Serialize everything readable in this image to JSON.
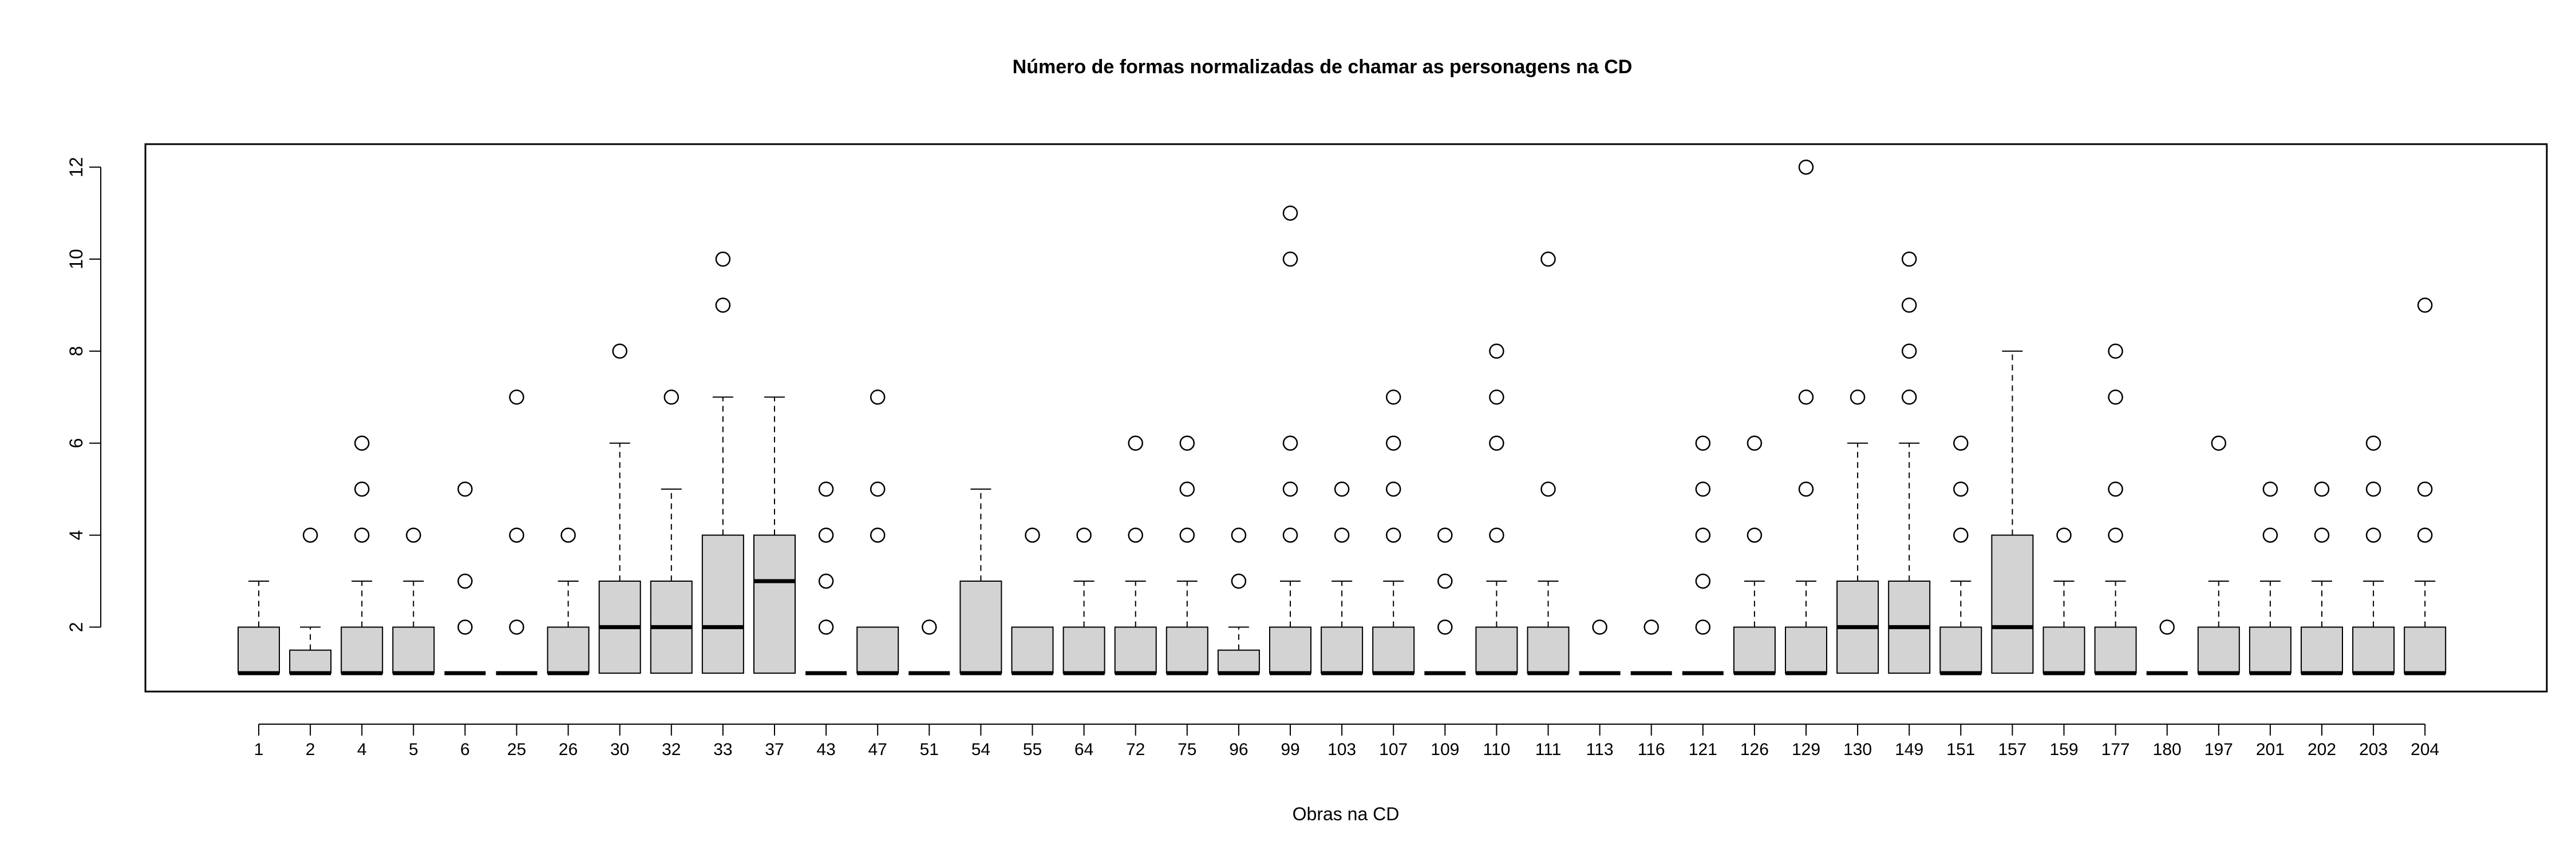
{
  "chart_data": {
    "type": "boxplot",
    "title": "Número de formas normalizadas de chamar as personagens na CD",
    "xlabel": "Obras na CD",
    "ylabel": "",
    "ylim": [
      0.6,
      12.5
    ],
    "yticks": [
      2,
      4,
      6,
      8,
      10,
      12
    ],
    "grid": false,
    "box_fill": "#d3d3d3",
    "categories": [
      "1",
      "2",
      "4",
      "5",
      "6",
      "25",
      "26",
      "30",
      "32",
      "33",
      "37",
      "43",
      "47",
      "51",
      "54",
      "55",
      "64",
      "72",
      "75",
      "96",
      "99",
      "103",
      "107",
      "109",
      "110",
      "111",
      "113",
      "116",
      "121",
      "126",
      "129",
      "130",
      "149",
      "151",
      "157",
      "159",
      "177",
      "180",
      "197",
      "201",
      "202",
      "203",
      "204"
    ],
    "boxes": [
      {
        "min": 1,
        "q1": 1,
        "median": 1,
        "q3": 2,
        "max": 3,
        "outliers": []
      },
      {
        "min": 1,
        "q1": 1,
        "median": 1,
        "q3": 1.5,
        "max": 2,
        "outliers": [
          4
        ]
      },
      {
        "min": 1,
        "q1": 1,
        "median": 1,
        "q3": 2,
        "max": 3,
        "outliers": [
          4,
          5,
          6
        ]
      },
      {
        "min": 1,
        "q1": 1,
        "median": 1,
        "q3": 2,
        "max": 3,
        "outliers": [
          4
        ]
      },
      {
        "min": 1,
        "q1": 1,
        "median": 1,
        "q3": 1,
        "max": 1,
        "outliers": [
          2,
          3,
          5
        ]
      },
      {
        "min": 1,
        "q1": 1,
        "median": 1,
        "q3": 1,
        "max": 1,
        "outliers": [
          2,
          4,
          7
        ]
      },
      {
        "min": 1,
        "q1": 1,
        "median": 1,
        "q3": 2,
        "max": 3,
        "outliers": [
          4
        ]
      },
      {
        "min": 1,
        "q1": 1,
        "median": 2,
        "q3": 3,
        "max": 6,
        "outliers": [
          8
        ]
      },
      {
        "min": 1,
        "q1": 1,
        "median": 2,
        "q3": 3,
        "max": 5,
        "outliers": [
          7
        ]
      },
      {
        "min": 1,
        "q1": 1,
        "median": 2,
        "q3": 4,
        "max": 7,
        "outliers": [
          9,
          10
        ]
      },
      {
        "min": 1,
        "q1": 1,
        "median": 3,
        "q3": 4,
        "max": 7,
        "outliers": []
      },
      {
        "min": 1,
        "q1": 1,
        "median": 1,
        "q3": 1,
        "max": 1,
        "outliers": [
          2,
          3,
          4,
          5
        ]
      },
      {
        "min": 1,
        "q1": 1,
        "median": 1,
        "q3": 2,
        "max": 2,
        "outliers": [
          4,
          5,
          7
        ]
      },
      {
        "min": 1,
        "q1": 1,
        "median": 1,
        "q3": 1,
        "max": 1,
        "outliers": [
          2
        ]
      },
      {
        "min": 1,
        "q1": 1,
        "median": 1,
        "q3": 3,
        "max": 5,
        "outliers": []
      },
      {
        "min": 1,
        "q1": 1,
        "median": 1,
        "q3": 2,
        "max": 2,
        "outliers": [
          4
        ]
      },
      {
        "min": 1,
        "q1": 1,
        "median": 1,
        "q3": 2,
        "max": 3,
        "outliers": [
          4
        ]
      },
      {
        "min": 1,
        "q1": 1,
        "median": 1,
        "q3": 2,
        "max": 3,
        "outliers": [
          4,
          6
        ]
      },
      {
        "min": 1,
        "q1": 1,
        "median": 1,
        "q3": 2,
        "max": 3,
        "outliers": [
          4,
          5,
          6
        ]
      },
      {
        "min": 1,
        "q1": 1,
        "median": 1,
        "q3": 1.5,
        "max": 2,
        "outliers": [
          3,
          4
        ]
      },
      {
        "min": 1,
        "q1": 1,
        "median": 1,
        "q3": 2,
        "max": 3,
        "outliers": [
          4,
          5,
          6,
          10,
          11
        ]
      },
      {
        "min": 1,
        "q1": 1,
        "median": 1,
        "q3": 2,
        "max": 3,
        "outliers": [
          4,
          5
        ]
      },
      {
        "min": 1,
        "q1": 1,
        "median": 1,
        "q3": 2,
        "max": 3,
        "outliers": [
          4,
          5,
          6,
          7
        ]
      },
      {
        "min": 1,
        "q1": 1,
        "median": 1,
        "q3": 1,
        "max": 1,
        "outliers": [
          2,
          3,
          4
        ]
      },
      {
        "min": 1,
        "q1": 1,
        "median": 1,
        "q3": 2,
        "max": 3,
        "outliers": [
          4,
          6,
          7,
          8
        ]
      },
      {
        "min": 1,
        "q1": 1,
        "median": 1,
        "q3": 2,
        "max": 3,
        "outliers": [
          5,
          10
        ]
      },
      {
        "min": 1,
        "q1": 1,
        "median": 1,
        "q3": 1,
        "max": 1,
        "outliers": [
          2
        ]
      },
      {
        "min": 1,
        "q1": 1,
        "median": 1,
        "q3": 1,
        "max": 1,
        "outliers": [
          2
        ]
      },
      {
        "min": 1,
        "q1": 1,
        "median": 1,
        "q3": 1,
        "max": 1,
        "outliers": [
          2,
          3,
          4,
          5,
          6
        ]
      },
      {
        "min": 1,
        "q1": 1,
        "median": 1,
        "q3": 2,
        "max": 3,
        "outliers": [
          4,
          6
        ]
      },
      {
        "min": 1,
        "q1": 1,
        "median": 1,
        "q3": 2,
        "max": 3,
        "outliers": [
          5,
          7,
          12
        ]
      },
      {
        "min": 1,
        "q1": 1,
        "median": 2,
        "q3": 3,
        "max": 6,
        "outliers": [
          7
        ]
      },
      {
        "min": 1,
        "q1": 1,
        "median": 2,
        "q3": 3,
        "max": 6,
        "outliers": [
          7,
          8,
          9,
          10
        ]
      },
      {
        "min": 1,
        "q1": 1,
        "median": 1,
        "q3": 2,
        "max": 3,
        "outliers": [
          4,
          5,
          6
        ]
      },
      {
        "min": 1,
        "q1": 1,
        "median": 2,
        "q3": 4,
        "max": 8,
        "outliers": []
      },
      {
        "min": 1,
        "q1": 1,
        "median": 1,
        "q3": 2,
        "max": 3,
        "outliers": [
          4
        ]
      },
      {
        "min": 1,
        "q1": 1,
        "median": 1,
        "q3": 2,
        "max": 3,
        "outliers": [
          4,
          5,
          7,
          8
        ]
      },
      {
        "min": 1,
        "q1": 1,
        "median": 1,
        "q3": 1,
        "max": 1,
        "outliers": [
          2
        ]
      },
      {
        "min": 1,
        "q1": 1,
        "median": 1,
        "q3": 2,
        "max": 3,
        "outliers": [
          6
        ]
      },
      {
        "min": 1,
        "q1": 1,
        "median": 1,
        "q3": 2,
        "max": 3,
        "outliers": [
          4,
          5
        ]
      },
      {
        "min": 1,
        "q1": 1,
        "median": 1,
        "q3": 2,
        "max": 3,
        "outliers": [
          4,
          5
        ]
      },
      {
        "min": 1,
        "q1": 1,
        "median": 1,
        "q3": 2,
        "max": 3,
        "outliers": [
          4,
          5,
          6
        ]
      },
      {
        "min": 1,
        "q1": 1,
        "median": 1,
        "q3": 2,
        "max": 3,
        "outliers": [
          4,
          5,
          9
        ]
      }
    ]
  }
}
